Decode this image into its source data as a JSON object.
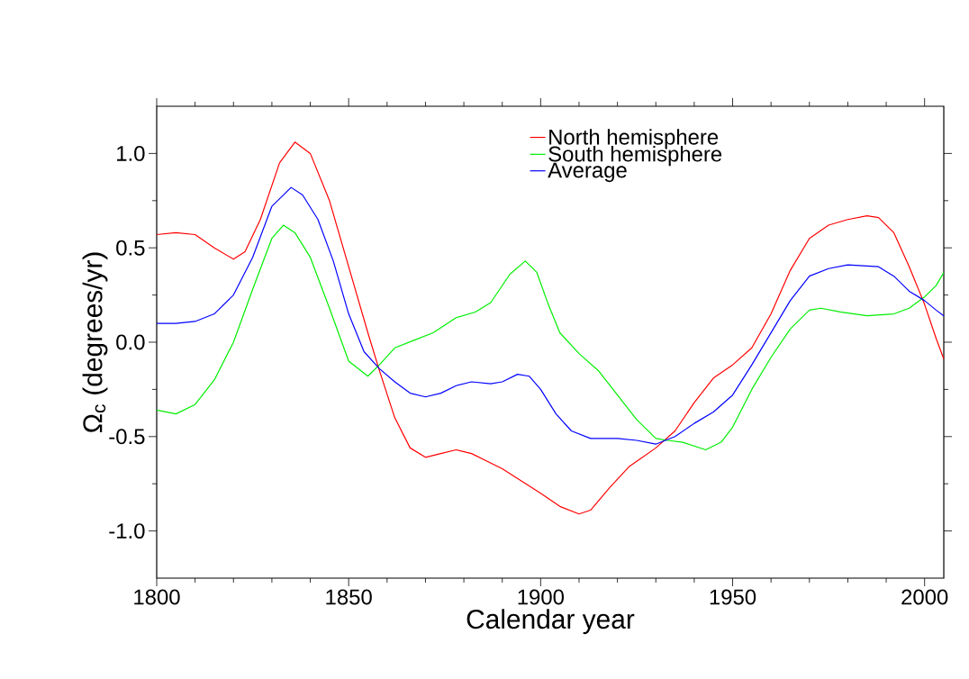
{
  "chart_data": {
    "type": "line",
    "xlabel": "Calendar year",
    "ylabel": "Ω$_{c}$ (degrees/yr)",
    "xlim": [
      1800,
      2005
    ],
    "ylim": [
      -1.25,
      1.25
    ],
    "xticks": [
      1800,
      1850,
      1900,
      1950,
      2000
    ],
    "yticks": [
      {
        "value": -1,
        "label": "-1.0"
      },
      {
        "value": -0.5,
        "label": "-0.5"
      },
      {
        "value": 0,
        "label": "0.0"
      },
      {
        "value": 0.5,
        "label": "0.5"
      },
      {
        "value": 1,
        "label": "1.0"
      }
    ],
    "legend": "top right",
    "grid": false,
    "marker": "none",
    "line_style": "solid",
    "series": [
      {
        "name": "North hemisphere",
        "color": "#ff0000",
        "x": [
          1800,
          1805,
          1810,
          1815,
          1820,
          1823,
          1827,
          1832,
          1836,
          1840,
          1845,
          1850,
          1855,
          1858,
          1862,
          1866,
          1870,
          1874,
          1878,
          1882,
          1890,
          1900,
          1905,
          1910,
          1913,
          1918,
          1923,
          1930,
          1935,
          1940,
          1945,
          1950,
          1955,
          1960,
          1965,
          1970,
          1975,
          1980,
          1985,
          1988,
          1992,
          1996,
          2000,
          2003,
          2005
        ],
        "values": [
          0.57,
          0.58,
          0.57,
          0.5,
          0.44,
          0.48,
          0.65,
          0.95,
          1.06,
          1.0,
          0.75,
          0.4,
          0.05,
          -0.15,
          -0.4,
          -0.56,
          -0.61,
          -0.59,
          -0.57,
          -0.59,
          -0.67,
          -0.8,
          -0.87,
          -0.91,
          -0.89,
          -0.77,
          -0.66,
          -0.56,
          -0.47,
          -0.32,
          -0.19,
          -0.12,
          -0.03,
          0.15,
          0.38,
          0.55,
          0.62,
          0.65,
          0.67,
          0.66,
          0.58,
          0.4,
          0.2,
          0.02,
          -0.09
        ]
      },
      {
        "name": "South hemisphere",
        "color": "#00ee00",
        "x": [
          1800,
          1805,
          1810,
          1815,
          1820,
          1825,
          1830,
          1833,
          1836,
          1840,
          1845,
          1850,
          1855,
          1858,
          1862,
          1867,
          1872,
          1878,
          1883,
          1887,
          1892,
          1896,
          1899,
          1902,
          1905,
          1910,
          1915,
          1920,
          1925,
          1930,
          1933,
          1937,
          1943,
          1947,
          1950,
          1955,
          1960,
          1965,
          1970,
          1973,
          1978,
          1985,
          1992,
          1996,
          2000,
          2003,
          2005
        ],
        "values": [
          -0.36,
          -0.38,
          -0.33,
          -0.2,
          0.0,
          0.28,
          0.55,
          0.62,
          0.58,
          0.45,
          0.18,
          -0.1,
          -0.18,
          -0.12,
          -0.03,
          0.01,
          0.05,
          0.13,
          0.16,
          0.21,
          0.36,
          0.43,
          0.37,
          0.2,
          0.05,
          -0.06,
          -0.15,
          -0.28,
          -0.41,
          -0.51,
          -0.52,
          -0.53,
          -0.57,
          -0.53,
          -0.45,
          -0.25,
          -0.08,
          0.07,
          0.17,
          0.18,
          0.16,
          0.14,
          0.15,
          0.18,
          0.24,
          0.3,
          0.37
        ]
      },
      {
        "name": "Average",
        "color": "#0000ff",
        "x": [
          1800,
          1805,
          1810,
          1815,
          1820,
          1825,
          1830,
          1835,
          1838,
          1842,
          1846,
          1850,
          1854,
          1858,
          1862,
          1866,
          1870,
          1874,
          1878,
          1882,
          1887,
          1890,
          1894,
          1897,
          1900,
          1904,
          1908,
          1913,
          1920,
          1925,
          1930,
          1935,
          1940,
          1945,
          1950,
          1955,
          1960,
          1965,
          1970,
          1975,
          1980,
          1988,
          1992,
          1996,
          2000,
          2003,
          2005
        ],
        "values": [
          0.1,
          0.1,
          0.11,
          0.15,
          0.25,
          0.45,
          0.72,
          0.82,
          0.78,
          0.65,
          0.43,
          0.15,
          -0.05,
          -0.14,
          -0.21,
          -0.27,
          -0.29,
          -0.27,
          -0.23,
          -0.21,
          -0.22,
          -0.21,
          -0.17,
          -0.18,
          -0.25,
          -0.38,
          -0.47,
          -0.51,
          -0.51,
          -0.52,
          -0.54,
          -0.5,
          -0.43,
          -0.37,
          -0.28,
          -0.12,
          0.05,
          0.22,
          0.35,
          0.39,
          0.41,
          0.4,
          0.35,
          0.27,
          0.22,
          0.17,
          0.14
        ]
      }
    ]
  }
}
